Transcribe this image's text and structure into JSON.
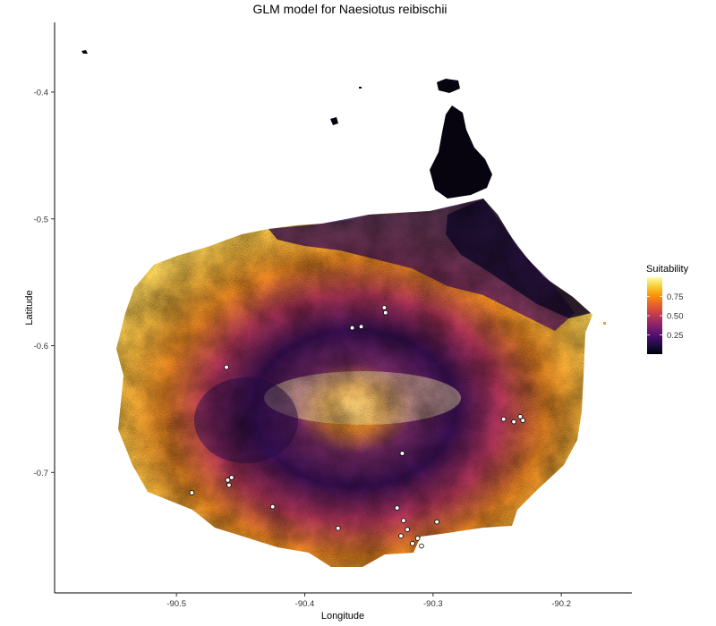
{
  "chart_data": {
    "type": "heatmap",
    "title": "GLM model for Naesiotus reibischii",
    "xlabel": "Longitude",
    "ylabel": "Latitude",
    "xlim": [
      -90.595,
      -90.145
    ],
    "ylim": [
      -0.795,
      -0.345
    ],
    "x_ticks": [
      {
        "value": -90.5,
        "label": "-90.5"
      },
      {
        "value": -90.4,
        "label": "-90.4"
      },
      {
        "value": -90.3,
        "label": "-90.3"
      },
      {
        "value": -90.2,
        "label": "-90.2"
      }
    ],
    "y_ticks": [
      {
        "value": -0.4,
        "label": "-0.4"
      },
      {
        "value": -0.5,
        "label": "-0.5"
      },
      {
        "value": -0.6,
        "label": "-0.6"
      },
      {
        "value": -0.7,
        "label": "-0.7"
      }
    ],
    "grid": false,
    "colormap": "inferno",
    "colormap_stops": [
      "#000004",
      "#1b0c41",
      "#4a0c6b",
      "#781c6d",
      "#a52c60",
      "#cf4446",
      "#ed6925",
      "#fb9b06",
      "#f7d13d",
      "#fcffa4"
    ],
    "legend": {
      "title": "Suitability",
      "position": "right",
      "range": [
        0.0,
        1.0
      ],
      "ticks": [
        {
          "value": 0.75,
          "label": "0.75"
        },
        {
          "value": 0.5,
          "label": "0.50"
        },
        {
          "value": 0.25,
          "label": "0.25"
        }
      ]
    },
    "occurrence_points": [
      {
        "x": -90.461,
        "y": -0.617
      },
      {
        "x": -90.338,
        "y": -0.57
      },
      {
        "x": -90.337,
        "y": -0.574
      },
      {
        "x": -90.356,
        "y": -0.585
      },
      {
        "x": -90.363,
        "y": -0.586
      },
      {
        "x": -90.245,
        "y": -0.658
      },
      {
        "x": -90.237,
        "y": -0.66
      },
      {
        "x": -90.232,
        "y": -0.656
      },
      {
        "x": -90.23,
        "y": -0.659
      },
      {
        "x": -90.488,
        "y": -0.716
      },
      {
        "x": -90.46,
        "y": -0.706
      },
      {
        "x": -90.459,
        "y": -0.71
      },
      {
        "x": -90.457,
        "y": -0.704
      },
      {
        "x": -90.324,
        "y": -0.685
      },
      {
        "x": -90.425,
        "y": -0.727
      },
      {
        "x": -90.374,
        "y": -0.744
      },
      {
        "x": -90.328,
        "y": -0.728
      },
      {
        "x": -90.323,
        "y": -0.738
      },
      {
        "x": -90.297,
        "y": -0.739
      },
      {
        "x": -90.32,
        "y": -0.745
      },
      {
        "x": -90.325,
        "y": -0.75
      },
      {
        "x": -90.312,
        "y": -0.752
      },
      {
        "x": -90.309,
        "y": -0.758
      },
      {
        "x": -90.316,
        "y": -0.756
      }
    ]
  }
}
